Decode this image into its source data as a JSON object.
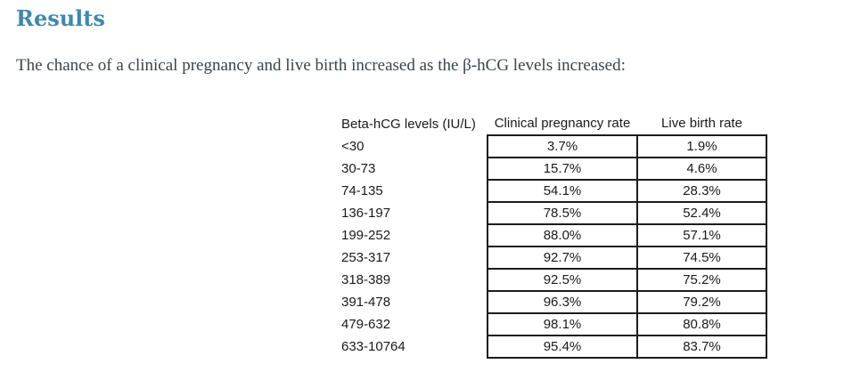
{
  "page": {
    "heading": "Results",
    "intro": "The chance of a clinical pregnancy and live birth increased as the β-hCG levels increased:"
  },
  "colors": {
    "heading_accent": "#3f88ae",
    "body_text": "#3a434b",
    "table_border": "#1c1c1c"
  },
  "table": {
    "columns": [
      "Beta-hCG levels (IU/L)",
      "Clinical pregnancy rate",
      "Live birth rate"
    ],
    "rows": [
      [
        "<30",
        "3.7%",
        "1.9%"
      ],
      [
        "30-73",
        "15.7%",
        "4.6%"
      ],
      [
        "74-135",
        "54.1%",
        "28.3%"
      ],
      [
        "136-197",
        "78.5%",
        "52.4%"
      ],
      [
        "199-252",
        "88.0%",
        "57.1%"
      ],
      [
        "253-317",
        "92.7%",
        "74.5%"
      ],
      [
        "318-389",
        "92.5%",
        "75.2%"
      ],
      [
        "391-478",
        "96.3%",
        "79.2%"
      ],
      [
        "479-632",
        "98.1%",
        "80.8%"
      ],
      [
        "633-10764",
        "95.4%",
        "83.7%"
      ]
    ]
  }
}
